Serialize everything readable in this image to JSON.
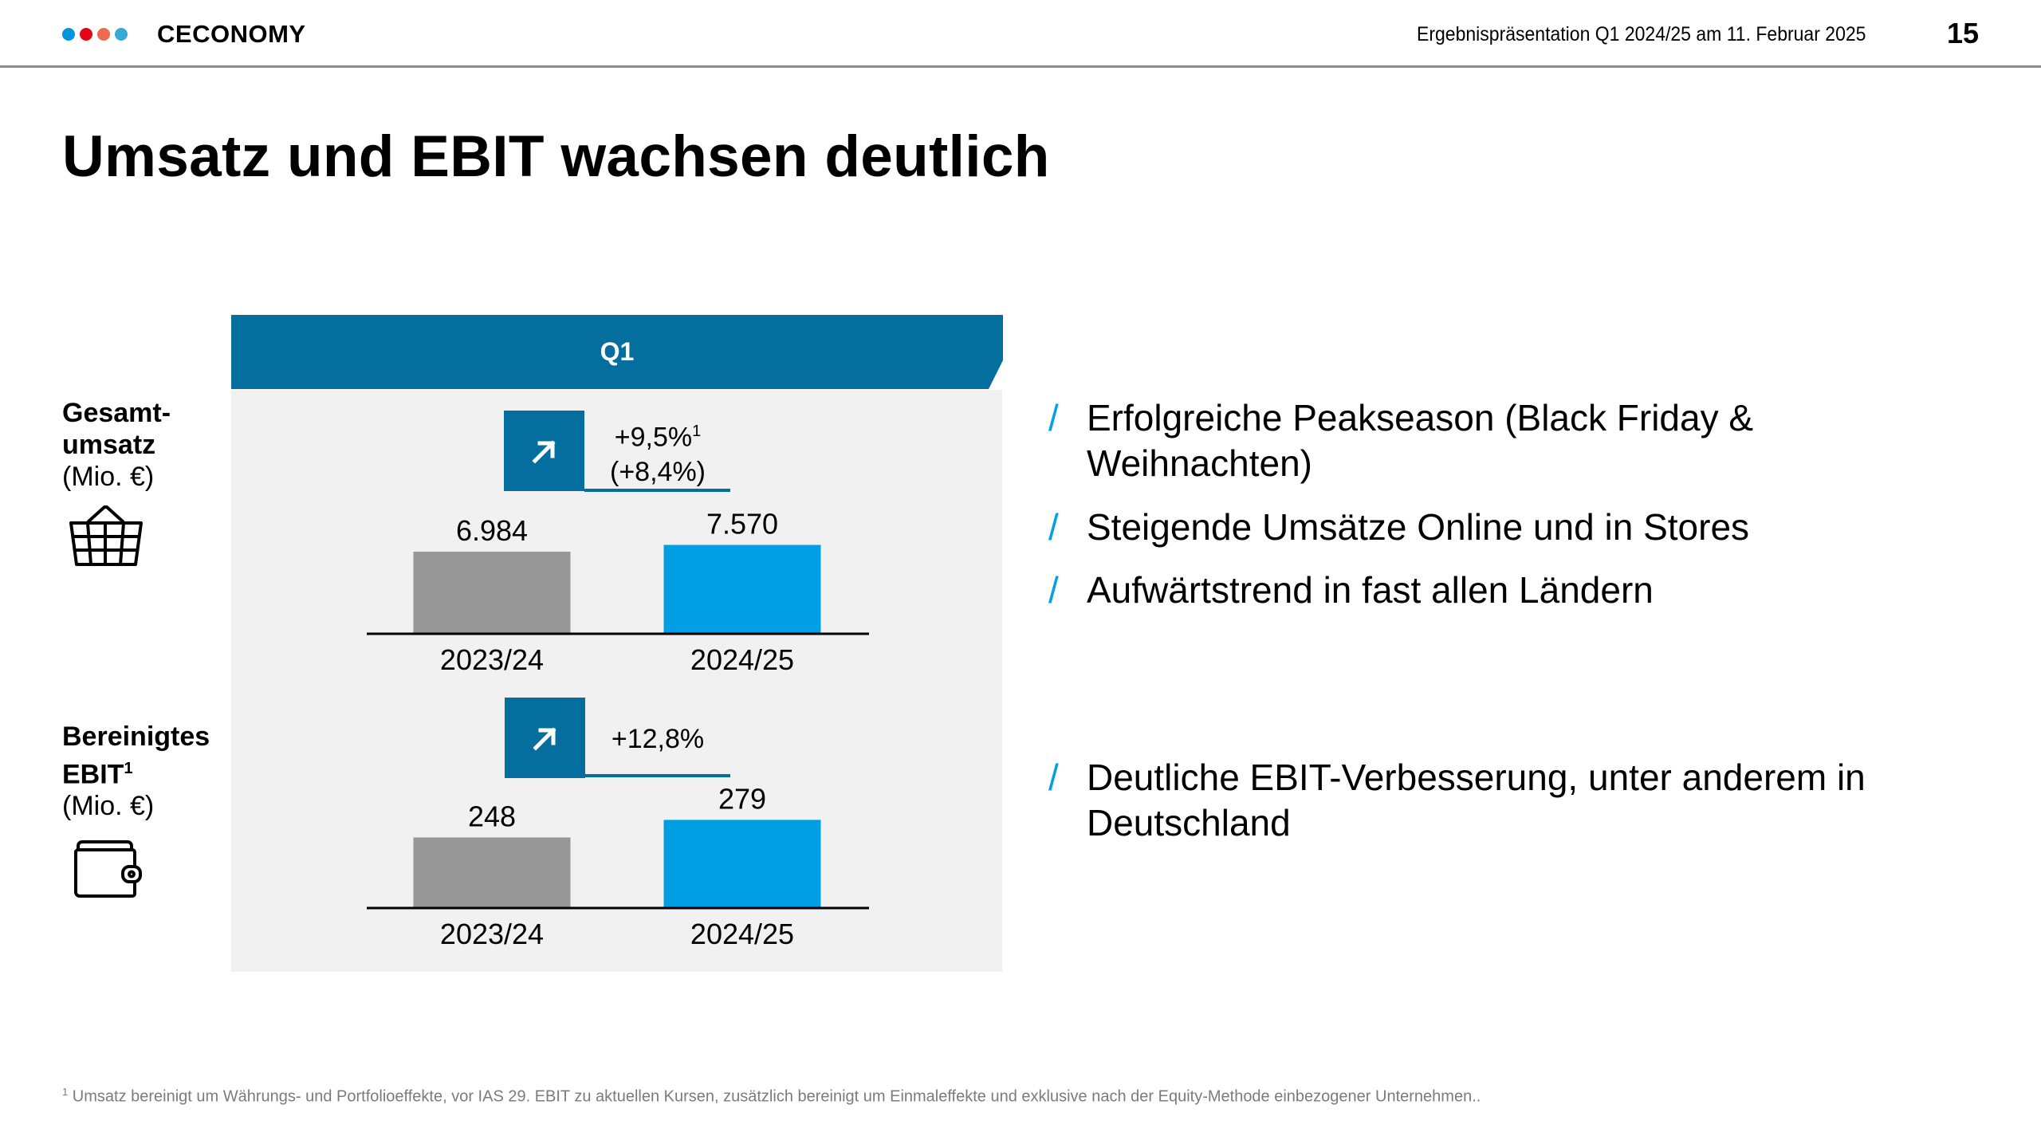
{
  "header": {
    "brand": "CECONOMY",
    "brand_dots": [
      "#0096df",
      "#e30613",
      "#ef6a4f",
      "#3aa8d4"
    ],
    "meta": "Ergebnispräsentation Q1 2024/25 am 11. Februar 2025",
    "page_number": "15"
  },
  "title": "Umsatz und EBIT wachsen deutlich",
  "panel": {
    "period_label": "Q1",
    "accent_color": "#046f9f"
  },
  "rows": [
    {
      "label_bold_1": "Gesamt-",
      "label_bold_2": "umsatz",
      "unit": "(Mio. €)",
      "icon": "shopping-basket-icon",
      "growth_icon": "arrow-up-right-icon",
      "growth_main": "+9,5%",
      "growth_sup": "1",
      "growth_secondary": "(+8,4%)"
    },
    {
      "label_bold_1": "Bereinigtes",
      "label_bold_2": "EBIT",
      "label_sup": "1",
      "unit": "(Mio. €)",
      "icon": "wallet-icon",
      "growth_icon": "arrow-up-right-icon",
      "growth_main": "+12,8%"
    }
  ],
  "chart_data": [
    {
      "type": "bar",
      "title": "Gesamtumsatz (Mio. €)",
      "categories": [
        "2023/24",
        "2024/25"
      ],
      "values": [
        6984,
        7570
      ],
      "value_labels": [
        "6.984",
        "7.570"
      ],
      "colors": [
        "#979797",
        "#009fe3"
      ],
      "ylim": [
        0,
        13700
      ],
      "growth": "+9,5%",
      "growth_secondary": "(+8,4%)",
      "xlabel": "",
      "ylabel": "Mio. €",
      "grid": false
    },
    {
      "type": "bar",
      "title": "Bereinigtes EBIT (Mio. €)",
      "categories": [
        "2023/24",
        "2024/25"
      ],
      "values": [
        248,
        279
      ],
      "value_labels": [
        "248",
        "279"
      ],
      "colors": [
        "#979797",
        "#009fe3"
      ],
      "ylim": [
        125,
        406
      ],
      "growth": "+12,8%",
      "xlabel": "",
      "ylabel": "Mio. €",
      "grid": false
    }
  ],
  "bullets_top": [
    "Erfolgreiche Peakseason (Black Friday & Weihnachten)",
    "Steigende Umsätze Online und in Stores",
    "Aufwärtstrend in fast allen Ländern"
  ],
  "bullets_bottom": [
    "Deutliche EBIT-Verbesserung, unter anderem in Deutschland"
  ],
  "bullet_marker": "/",
  "footnote": {
    "marker": "1",
    "text": "Umsatz bereinigt um Währungs- und Portfolioeffekte, vor IAS 29. EBIT zu aktuellen Kursen, zusätzlich bereinigt um Einmaleffekte und exklusive nach der Equity-Methode einbezogener Unternehmen.."
  }
}
